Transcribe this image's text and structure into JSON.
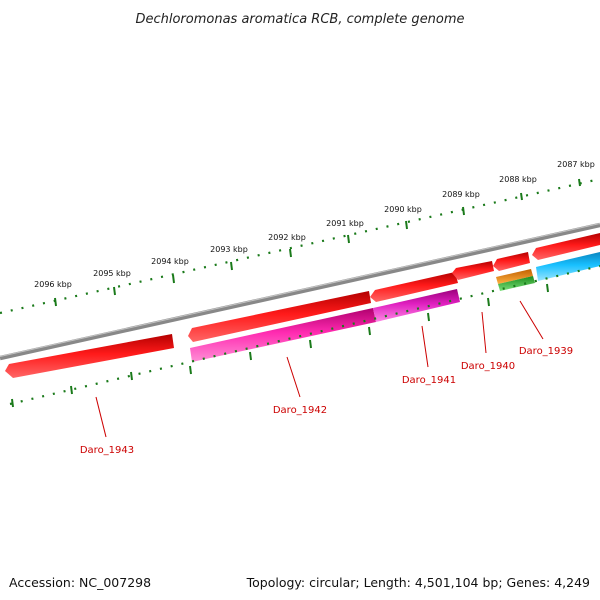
{
  "title": "Dechloromonas aromatica RCB, complete genome",
  "footer": {
    "accession": "Accession: NC_007298",
    "topology": "Topology: circular; Length: 4,501,104 bp; Genes: 4,249"
  },
  "scale": {
    "unit": "kbp",
    "tick_labels": [
      "2087 kbp",
      "2088 kbp",
      "2089 kbp",
      "2090 kbp",
      "2091 kbp",
      "2092 kbp",
      "2093 kbp",
      "2094 kbp",
      "2095 kbp",
      "2096 kbp"
    ]
  },
  "genes": [
    {
      "name": "Daro_1943"
    },
    {
      "name": "Daro_1942"
    },
    {
      "name": "Daro_1941"
    },
    {
      "name": "Daro_1940"
    },
    {
      "name": "Daro_1939"
    }
  ],
  "colors": {
    "cds": "#ee0000",
    "magenta": "#e8179a",
    "cyan": "#16b6ee",
    "orange": "#f08a00",
    "green": "#2fb82f",
    "backbone": "#888888",
    "ticks": "#1a7a1a",
    "label": "#cc0000"
  }
}
